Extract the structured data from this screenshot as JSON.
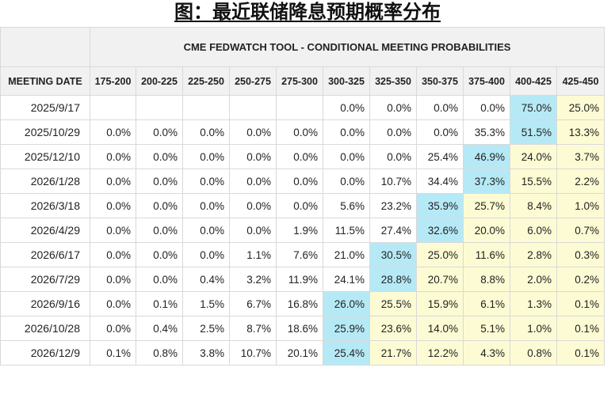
{
  "title": "图：最近联储降息预期概率分布",
  "chart_data": {
    "type": "table",
    "header_title": "CME FEDWATCH TOOL - CONDITIONAL MEETING PROBABILITIES",
    "row_header": "MEETING DATE",
    "columns": [
      "175-200",
      "200-225",
      "225-250",
      "250-275",
      "275-300",
      "300-325",
      "325-350",
      "350-375",
      "375-400",
      "400-425",
      "425-450"
    ],
    "rows": [
      {
        "date": "2025/9/17",
        "values": [
          "",
          "",
          "",
          "",
          "",
          "0.0%",
          "0.0%",
          "0.0%",
          "0.0%",
          "75.0%",
          "25.0%"
        ]
      },
      {
        "date": "2025/10/29",
        "values": [
          "0.0%",
          "0.0%",
          "0.0%",
          "0.0%",
          "0.0%",
          "0.0%",
          "0.0%",
          "0.0%",
          "35.3%",
          "51.5%",
          "13.3%"
        ]
      },
      {
        "date": "2025/12/10",
        "values": [
          "0.0%",
          "0.0%",
          "0.0%",
          "0.0%",
          "0.0%",
          "0.0%",
          "0.0%",
          "25.4%",
          "46.9%",
          "24.0%",
          "3.7%"
        ]
      },
      {
        "date": "2026/1/28",
        "values": [
          "0.0%",
          "0.0%",
          "0.0%",
          "0.0%",
          "0.0%",
          "0.0%",
          "10.7%",
          "34.4%",
          "37.3%",
          "15.5%",
          "2.2%"
        ]
      },
      {
        "date": "2026/3/18",
        "values": [
          "0.0%",
          "0.0%",
          "0.0%",
          "0.0%",
          "0.0%",
          "5.6%",
          "23.2%",
          "35.9%",
          "25.7%",
          "8.4%",
          "1.0%"
        ]
      },
      {
        "date": "2026/4/29",
        "values": [
          "0.0%",
          "0.0%",
          "0.0%",
          "0.0%",
          "1.9%",
          "11.5%",
          "27.4%",
          "32.6%",
          "20.0%",
          "6.0%",
          "0.7%"
        ]
      },
      {
        "date": "2026/6/17",
        "values": [
          "0.0%",
          "0.0%",
          "0.0%",
          "1.1%",
          "7.6%",
          "21.0%",
          "30.5%",
          "25.0%",
          "11.6%",
          "2.8%",
          "0.3%"
        ]
      },
      {
        "date": "2026/7/29",
        "values": [
          "0.0%",
          "0.0%",
          "0.4%",
          "3.2%",
          "11.9%",
          "24.1%",
          "28.8%",
          "20.7%",
          "8.8%",
          "2.0%",
          "0.2%"
        ]
      },
      {
        "date": "2026/9/16",
        "values": [
          "0.0%",
          "0.1%",
          "1.5%",
          "6.7%",
          "16.8%",
          "26.0%",
          "25.5%",
          "15.9%",
          "6.1%",
          "1.3%",
          "0.1%"
        ]
      },
      {
        "date": "2026/10/28",
        "values": [
          "0.0%",
          "0.4%",
          "2.5%",
          "8.7%",
          "18.6%",
          "25.9%",
          "23.6%",
          "14.0%",
          "5.1%",
          "1.0%",
          "0.1%"
        ]
      },
      {
        "date": "2026/12/9",
        "values": [
          "0.1%",
          "0.8%",
          "3.8%",
          "10.7%",
          "20.1%",
          "25.4%",
          "21.7%",
          "12.2%",
          "4.3%",
          "0.8%",
          "0.1%"
        ]
      }
    ],
    "highlight_max_color": "#b6e9f6",
    "highlight_high_color": "#fcfbd3",
    "highlight_max_cells": [
      [
        0,
        9
      ],
      [
        1,
        9
      ],
      [
        2,
        8
      ],
      [
        3,
        8
      ],
      [
        4,
        7
      ],
      [
        5,
        7
      ],
      [
        6,
        6
      ],
      [
        7,
        6
      ],
      [
        8,
        5
      ],
      [
        9,
        5
      ],
      [
        10,
        5
      ]
    ],
    "highlight_high_cells": [
      [
        0,
        10
      ],
      [
        1,
        10
      ],
      [
        2,
        9
      ],
      [
        2,
        10
      ],
      [
        3,
        9
      ],
      [
        3,
        10
      ],
      [
        4,
        8
      ],
      [
        4,
        9
      ],
      [
        4,
        10
      ],
      [
        5,
        8
      ],
      [
        5,
        9
      ],
      [
        5,
        10
      ],
      [
        6,
        7
      ],
      [
        6,
        8
      ],
      [
        6,
        9
      ],
      [
        6,
        10
      ],
      [
        7,
        7
      ],
      [
        7,
        8
      ],
      [
        7,
        9
      ],
      [
        7,
        10
      ],
      [
        8,
        6
      ],
      [
        8,
        7
      ],
      [
        8,
        8
      ],
      [
        8,
        9
      ],
      [
        8,
        10
      ],
      [
        9,
        6
      ],
      [
        9,
        7
      ],
      [
        9,
        8
      ],
      [
        9,
        9
      ],
      [
        9,
        10
      ],
      [
        10,
        6
      ],
      [
        10,
        7
      ],
      [
        10,
        8
      ],
      [
        10,
        9
      ],
      [
        10,
        10
      ]
    ]
  }
}
